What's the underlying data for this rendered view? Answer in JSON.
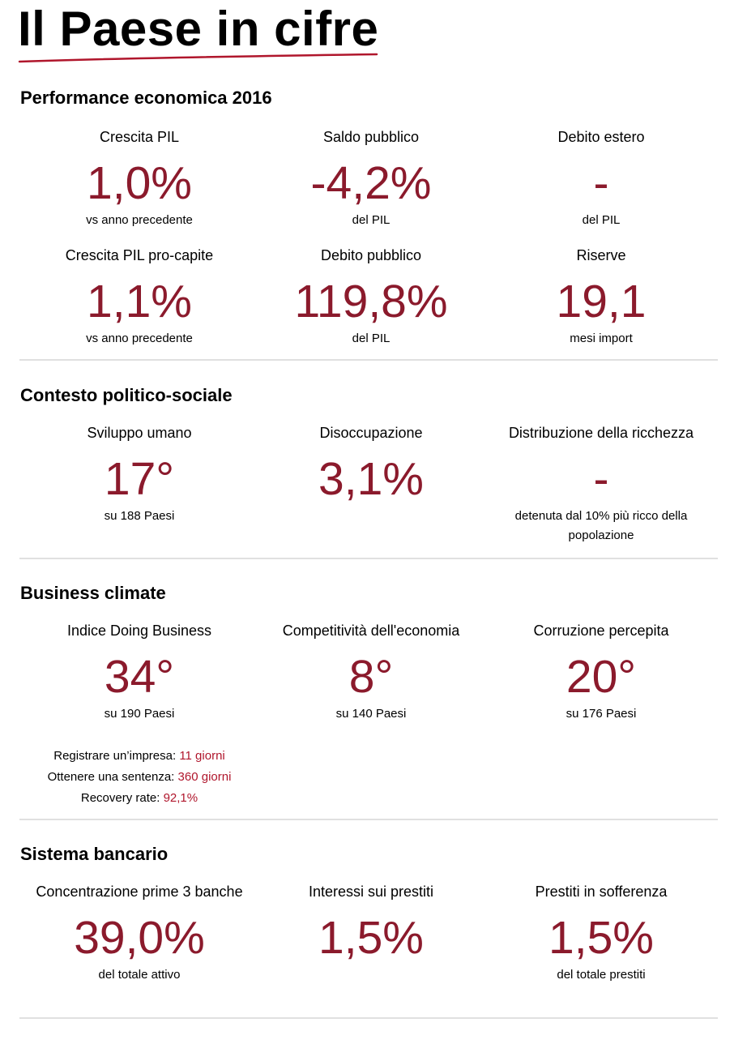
{
  "page": {
    "title": "Il Paese in cifre",
    "accent_color": "#8b1a2c"
  },
  "sections": [
    {
      "title": "Performance economica 2016",
      "rows": [
        [
          {
            "label": "Crescita PIL",
            "value": "1,0%",
            "sub": "vs anno precedente"
          },
          {
            "label": "Saldo pubblico",
            "value": "-4,2%",
            "sub": "del PIL"
          },
          {
            "label": "Debito estero",
            "value": "-",
            "sub": "del PIL"
          }
        ],
        [
          {
            "label": "Crescita PIL pro-capite",
            "value": "1,1%",
            "sub": "vs anno precedente"
          },
          {
            "label": "Debito pubblico",
            "value": "119,8%",
            "sub": "del PIL"
          },
          {
            "label": "Riserve",
            "value": "19,1",
            "sub": "mesi import"
          }
        ]
      ]
    },
    {
      "title": "Contesto politico-sociale",
      "rows": [
        [
          {
            "label": "Sviluppo umano",
            "value": "17°",
            "sub": "su 188 Paesi"
          },
          {
            "label": "Disoccupazione",
            "value": "3,1%",
            "sub": ""
          },
          {
            "label": "Distribuzione della ricchezza",
            "value": "-",
            "sub": "detenuta dal 10% più ricco della popolazione"
          }
        ]
      ]
    },
    {
      "title": "Business climate",
      "rows": [
        [
          {
            "label": "Indice Doing Business",
            "value": "34°",
            "sub": "su 190 Paesi"
          },
          {
            "label": "Competitività dell'economia",
            "value": "8°",
            "sub": "su 140 Paesi"
          },
          {
            "label": "Corruzione percepita",
            "value": "20°",
            "sub": "su 176 Paesi"
          }
        ]
      ],
      "details": [
        {
          "label": "Registrare un’impresa: ",
          "value": "11 giorni"
        },
        {
          "label": "Ottenere una sentenza: ",
          "value": "360 giorni"
        },
        {
          "label": "Recovery rate: ",
          "value": "92,1%"
        }
      ]
    },
    {
      "title": "Sistema bancario",
      "rows": [
        [
          {
            "label": "Concentrazione prime 3 banche",
            "value": "39,0%",
            "sub": "del totale attivo"
          },
          {
            "label": "Interessi sui prestiti",
            "value": "1,5%",
            "sub": ""
          },
          {
            "label": "Prestiti in sofferenza",
            "value": "1,5%",
            "sub": "del totale prestiti"
          }
        ]
      ]
    }
  ]
}
